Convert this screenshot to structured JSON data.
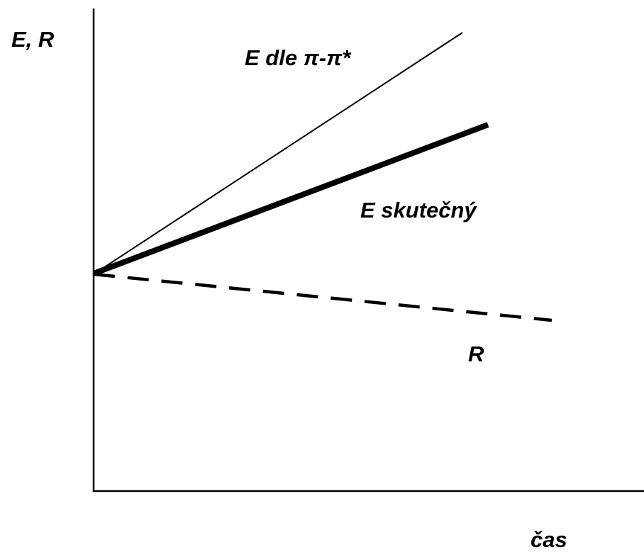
{
  "axes": {
    "y_label": "E, R",
    "x_label": "čas"
  },
  "lines": [
    {
      "label": "E dle π-π*"
    },
    {
      "label": "E skutečný"
    },
    {
      "label": "R"
    }
  ]
}
